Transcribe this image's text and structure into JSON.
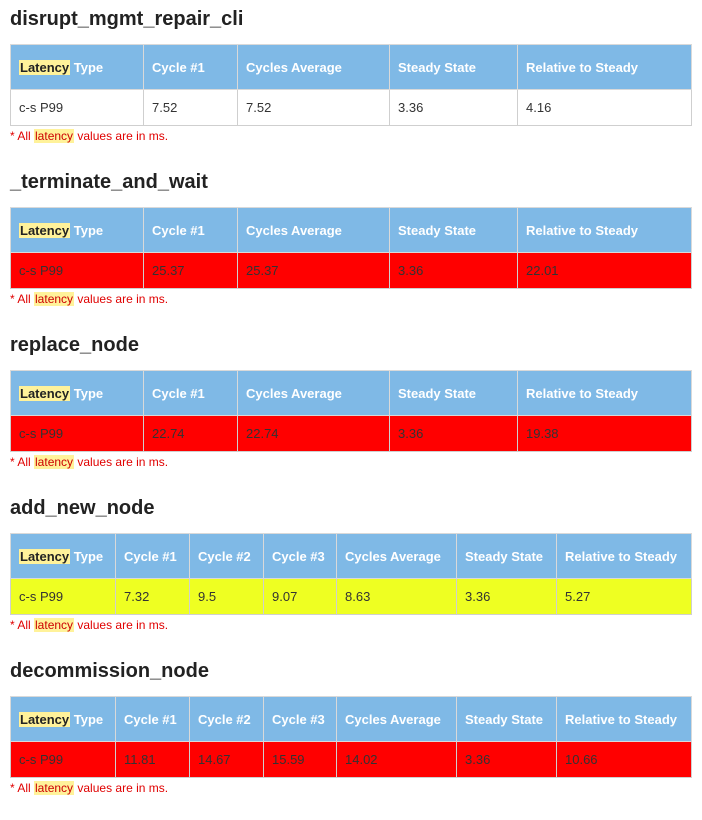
{
  "highlight_word": "Latency",
  "colors": {
    "header": "#7fb9e6",
    "red_row": "#ff0000",
    "yellow_row": "#eeff22",
    "highlight": "#fff29a",
    "note_text": "#e00000"
  },
  "note": {
    "prefix": "* All ",
    "word": "latency",
    "suffix": " values are in ms."
  },
  "sections": [
    {
      "title": "disrupt_mgmt_repair_cli",
      "headers_rest": [
        "Cycle #1",
        "Cycles Average",
        "Steady State",
        "Relative to Steady"
      ],
      "row_status": "white",
      "row": [
        "c-s P99",
        "7.52",
        "7.52",
        "3.36",
        "4.16"
      ]
    },
    {
      "title": "_terminate_and_wait",
      "headers_rest": [
        "Cycle #1",
        "Cycles Average",
        "Steady State",
        "Relative to Steady"
      ],
      "row_status": "red",
      "row": [
        "c-s P99",
        "25.37",
        "25.37",
        "3.36",
        "22.01"
      ]
    },
    {
      "title": "replace_node",
      "headers_rest": [
        "Cycle #1",
        "Cycles Average",
        "Steady State",
        "Relative to Steady"
      ],
      "row_status": "red",
      "row": [
        "c-s P99",
        "22.74",
        "22.74",
        "3.36",
        "19.38"
      ]
    },
    {
      "title": "add_new_node",
      "headers_rest": [
        "Cycle #1",
        "Cycle #2",
        "Cycle #3",
        "Cycles Average",
        "Steady State",
        "Relative to Steady"
      ],
      "row_status": "yellow",
      "row": [
        "c-s P99",
        "7.32",
        "9.5",
        "9.07",
        "8.63",
        "3.36",
        "5.27"
      ]
    },
    {
      "title": "decommission_node",
      "headers_rest": [
        "Cycle #1",
        "Cycle #2",
        "Cycle #3",
        "Cycles Average",
        "Steady State",
        "Relative to Steady"
      ],
      "row_status": "red",
      "row": [
        "c-s P99",
        "11.81",
        "14.67",
        "15.59",
        "14.02",
        "3.36",
        "10.66"
      ]
    }
  ],
  "type_suffix": " Type"
}
